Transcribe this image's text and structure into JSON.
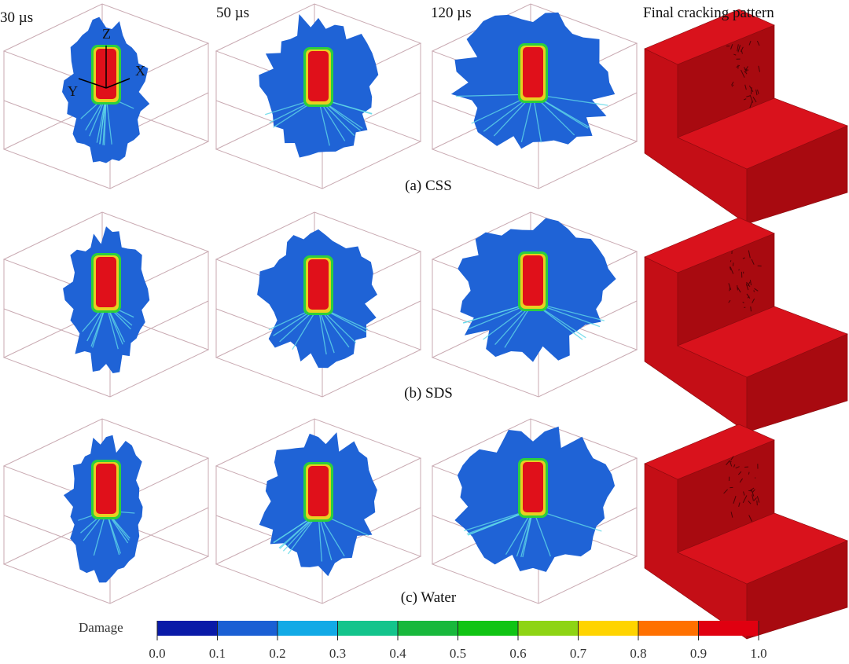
{
  "column_labels": [
    "30 µs",
    "50 µs",
    "120 µs",
    "Final cracking pattern"
  ],
  "row_captions": [
    "(a) CSS",
    "(b) SDS",
    "(c) Water"
  ],
  "axes": {
    "z": "Z",
    "x": "X",
    "y": "Y"
  },
  "colorbar": {
    "title": "Damage",
    "ticks": [
      "0.0",
      "0.1",
      "0.2",
      "0.3",
      "0.4",
      "0.5",
      "0.6",
      "0.7",
      "0.8",
      "0.9",
      "1.0"
    ],
    "colors": [
      "#0a1aa8",
      "#1a5fd4",
      "#12aae6",
      "#14c48c",
      "#18b83c",
      "#10c414",
      "#8ed414",
      "#ffd400",
      "#ff7000",
      "#e00010"
    ]
  },
  "colors": {
    "blob": "#1f63d6",
    "core": "#e0101a",
    "halo": "#2ccf3c",
    "ray": "#5fd8e8",
    "box": "#c9aab2",
    "block_top": "#d9121c",
    "block_left": "#c40e16",
    "block_right": "#a80a10"
  }
}
